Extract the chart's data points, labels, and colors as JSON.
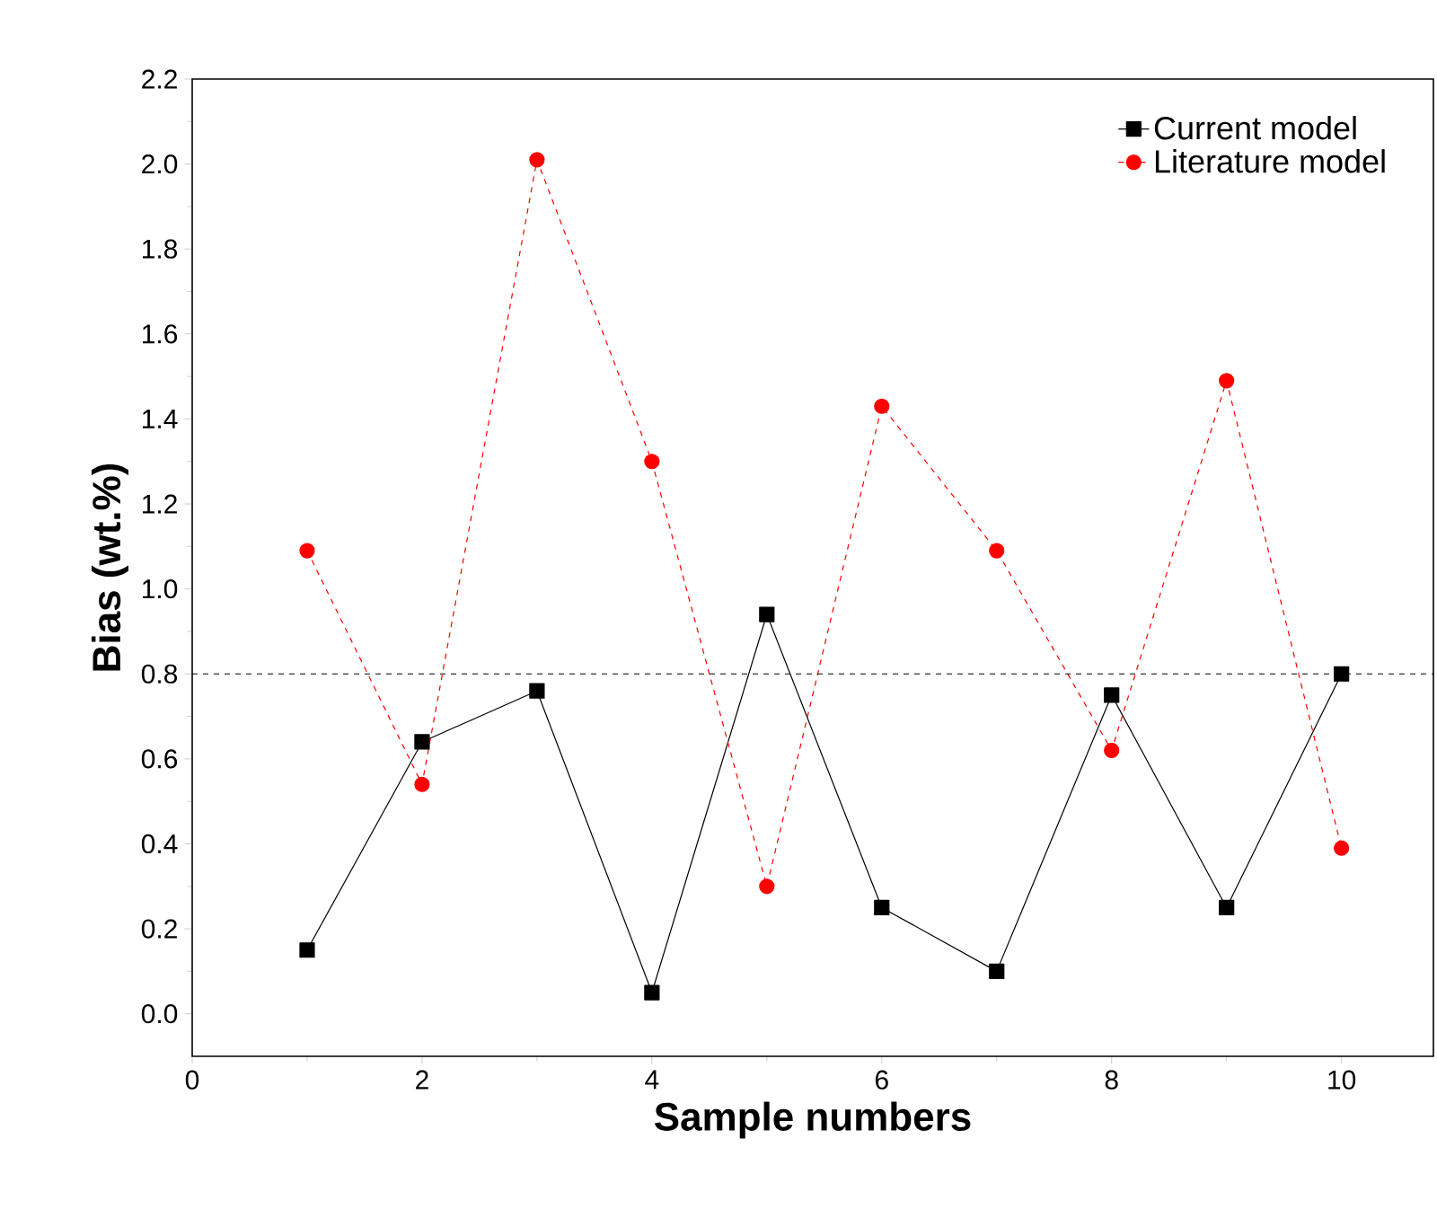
{
  "chart_data": {
    "type": "line",
    "xlabel": "Sample numbers",
    "ylabel": "Bias (wt.%)",
    "x": [
      1,
      2,
      3,
      4,
      5,
      6,
      7,
      8,
      9,
      10
    ],
    "series": [
      {
        "name": "Current model",
        "color": "#000000",
        "marker": "square",
        "line_style": "solid",
        "values": [
          0.15,
          0.64,
          0.76,
          0.05,
          0.94,
          0.25,
          0.1,
          0.75,
          0.25,
          0.8
        ]
      },
      {
        "name": "Literature model",
        "color": "#ff0000",
        "marker": "circle",
        "line_style": "dashed",
        "values": [
          1.09,
          0.54,
          2.01,
          1.3,
          0.3,
          1.43,
          1.09,
          0.62,
          1.49,
          0.39
        ]
      }
    ],
    "xlim": [
      0,
      10.8
    ],
    "ylim": [
      -0.1,
      2.2
    ],
    "xticks": [
      0,
      2,
      4,
      6,
      8,
      10
    ],
    "yticks": [
      {
        "value": 0,
        "label": "0.0"
      },
      0.2,
      0.4,
      0.6,
      0.8,
      {
        "value": 1,
        "label": "1.0"
      },
      1.2,
      1.4,
      1.6,
      1.8,
      {
        "value": 2,
        "label": "2.0"
      },
      2.2
    ],
    "ref_lines": [
      {
        "axis": "y",
        "value": 0.8,
        "color": "#000000",
        "line_style": "dashed"
      }
    ],
    "grid": false,
    "legend": "top right"
  }
}
